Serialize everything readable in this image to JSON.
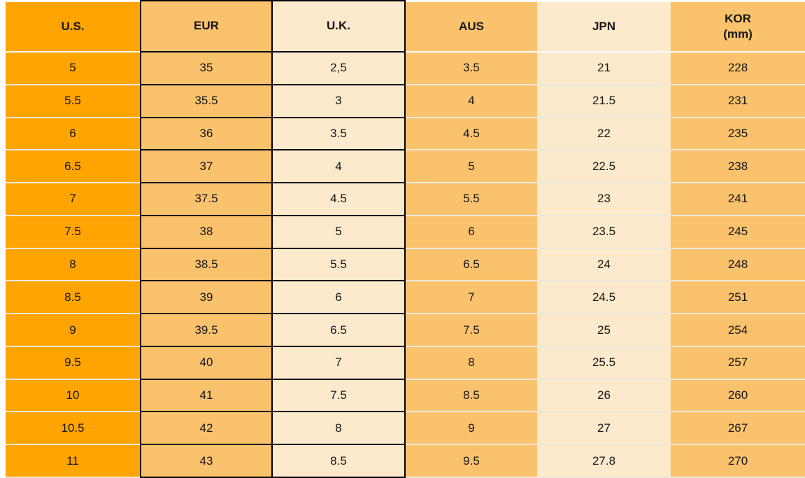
{
  "colors": {
    "header_blue": "#4489C6",
    "us_orange": "#FFA400",
    "mid_orange": "#FBC26D",
    "cream": "#FDE9CB",
    "grid_black": "#000000",
    "row_separator": "#EDE8DE"
  },
  "table": {
    "header_lines": [
      [
        "U.S."
      ],
      [
        "EUR"
      ],
      [
        "U.K."
      ],
      [
        "AUS"
      ],
      [
        "JPN"
      ],
      [
        "KOR",
        "(mm)"
      ]
    ]
  },
  "chart_data": {
    "type": "table",
    "columns": [
      "U.S.",
      "EUR",
      "U.K.",
      "AUS",
      "JPN",
      "KOR (mm)"
    ],
    "rows": [
      [
        "5",
        "35",
        "2,5",
        "3.5",
        "21",
        "228"
      ],
      [
        "5.5",
        "35.5",
        "3",
        "4",
        "21.5",
        "231"
      ],
      [
        "6",
        "36",
        "3.5",
        "4.5",
        "22",
        "235"
      ],
      [
        "6.5",
        "37",
        "4",
        "5",
        "22.5",
        "238"
      ],
      [
        "7",
        "37.5",
        "4.5",
        "5.5",
        "23",
        "241"
      ],
      [
        "7.5",
        "38",
        "5",
        "6",
        "23.5",
        "245"
      ],
      [
        "8",
        "38.5",
        "5.5",
        "6.5",
        "24",
        "248"
      ],
      [
        "8.5",
        "39",
        "6",
        "7",
        "24.5",
        "251"
      ],
      [
        "9",
        "39.5",
        "6.5",
        "7.5",
        "25",
        "254"
      ],
      [
        "9.5",
        "40",
        "7",
        "8",
        "25.5",
        "257"
      ],
      [
        "10",
        "41",
        "7.5",
        "8.5",
        "26",
        "260"
      ],
      [
        "10.5",
        "42",
        "8",
        "9",
        "27",
        "267"
      ],
      [
        "11",
        "43",
        "8.5",
        "9.5",
        "27.8",
        "270"
      ]
    ]
  }
}
